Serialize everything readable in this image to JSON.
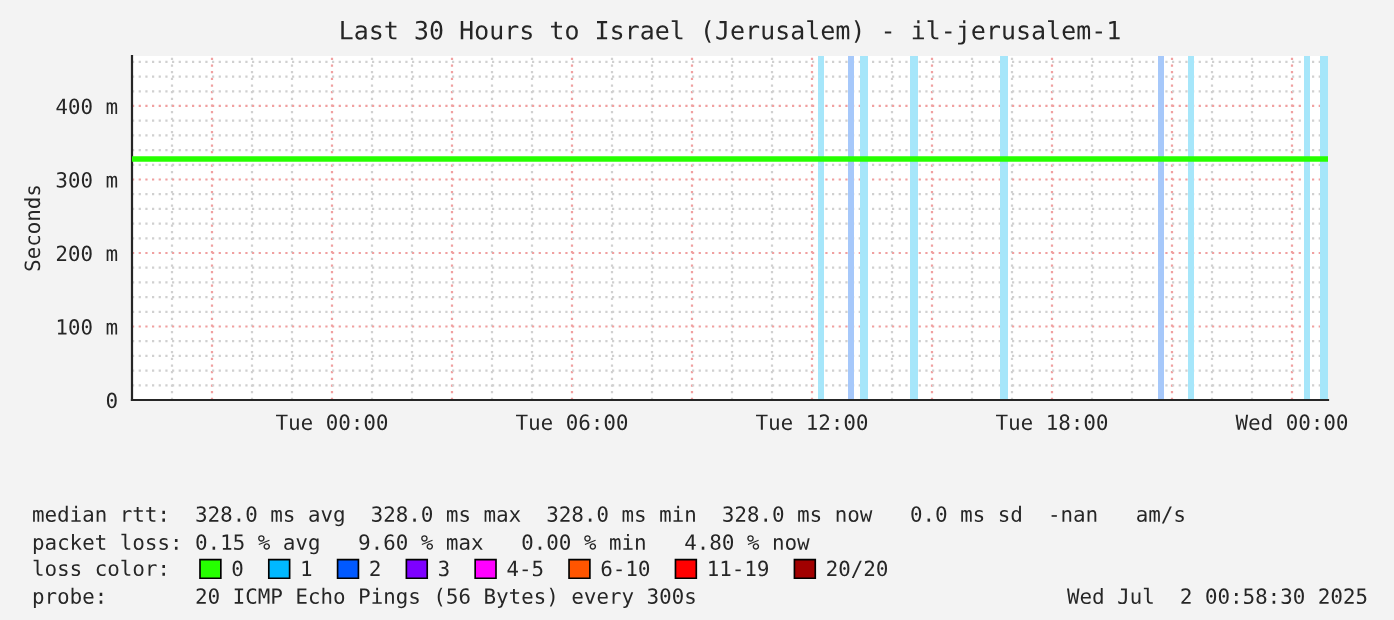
{
  "chart_data": {
    "type": "line",
    "title": "Last 30 Hours to Israel (Jerusalem) - il-jerusalem-1",
    "ylabel": "Seconds",
    "xlim": [
      "2025-06-30T19:00",
      "2025-07-02T00:54"
    ],
    "xticks": [
      {
        "value": "2025-07-01T00:00",
        "label": "Tue 00:00"
      },
      {
        "value": "2025-07-01T06:00",
        "label": "Tue 06:00"
      },
      {
        "value": "2025-07-01T12:00",
        "label": "Tue 12:00"
      },
      {
        "value": "2025-07-01T18:00",
        "label": "Tue 18:00"
      },
      {
        "value": "2025-07-02T00:00",
        "label": "Wed 00:00"
      }
    ],
    "ylim": [
      0,
      468
    ],
    "yticks": [
      {
        "value": 0,
        "label": "0"
      },
      {
        "value": 100,
        "label": "100 m"
      },
      {
        "value": 200,
        "label": "200 m"
      },
      {
        "value": 300,
        "label": "300 m"
      },
      {
        "value": 400,
        "label": "400 m"
      }
    ],
    "grid": true,
    "legend": "bottom",
    "legend_title": "loss color:",
    "series": [
      {
        "name": "0",
        "color": "#26ff00",
        "x": [
          "2025-06-30T19:00",
          "2025-07-02T00:54"
        ],
        "values": [
          328,
          328
        ]
      },
      {
        "name": "1",
        "color": "#00b8ff"
      },
      {
        "name": "2",
        "color": "#0059ff"
      },
      {
        "name": "3",
        "color": "#7e00ff"
      },
      {
        "name": "4-5",
        "color": "#ff00ff"
      },
      {
        "name": "6-10",
        "color": "#ff5500"
      },
      {
        "name": "11-19",
        "color": "#ff0000"
      },
      {
        "name": "20/20",
        "color": "#a10000"
      }
    ],
    "bands": [
      {
        "axis": "x",
        "from": "2025-07-01T12:09",
        "to": "2025-07-01T12:18",
        "color": "#a6e6fa"
      },
      {
        "axis": "x",
        "from": "2025-07-01T12:54",
        "to": "2025-07-01T13:03",
        "color": "#a6c8fa"
      },
      {
        "axis": "x",
        "from": "2025-07-01T13:12",
        "to": "2025-07-01T13:24",
        "color": "#a6e6fa"
      },
      {
        "axis": "x",
        "from": "2025-07-01T14:27",
        "to": "2025-07-01T14:39",
        "color": "#a6e6fa"
      },
      {
        "axis": "x",
        "from": "2025-07-01T16:42",
        "to": "2025-07-01T16:54",
        "color": "#a6e6fa"
      },
      {
        "axis": "x",
        "from": "2025-07-01T20:39",
        "to": "2025-07-01T20:48",
        "color": "#a6c8fa"
      },
      {
        "axis": "x",
        "from": "2025-07-01T21:24",
        "to": "2025-07-01T21:33",
        "color": "#a6e6fa"
      },
      {
        "axis": "x",
        "from": "2025-07-02T00:18",
        "to": "2025-07-02T00:27",
        "color": "#a6e6fa"
      },
      {
        "axis": "x",
        "from": "2025-07-02T00:42",
        "to": "2025-07-02T00:54",
        "color": "#a6e6fa"
      }
    ],
    "annotations": [
      "median rtt:  328.0 ms avg  328.0 ms max  328.0 ms min  328.0 ms now   0.0 ms sd  -nan   am/s",
      "packet loss: 0.15 % avg   9.60 % max   0.00 % min   4.80 % now",
      "probe:       20 ICMP Echo Pings (56 Bytes) every 300s",
      "Wed Jul  2 00:58:30 2025"
    ]
  }
}
